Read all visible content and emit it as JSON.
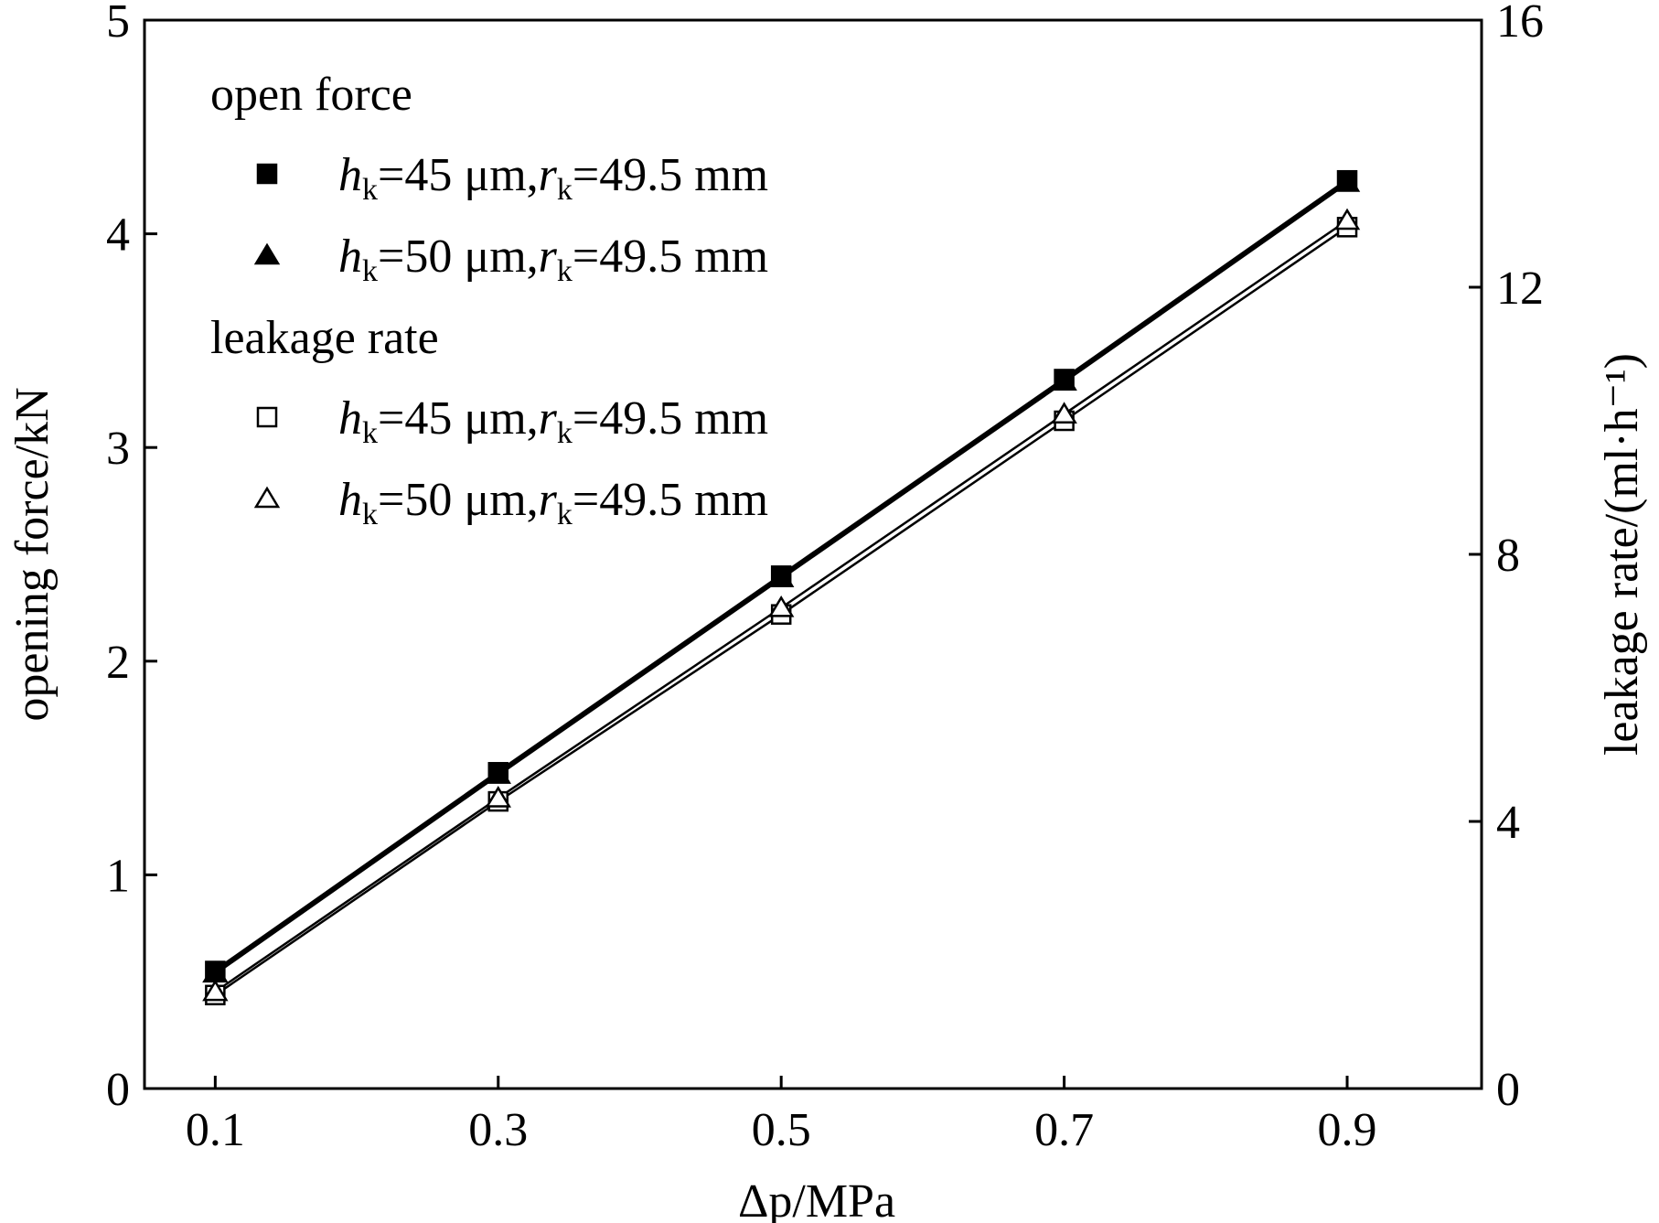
{
  "chart_data": {
    "type": "line",
    "title": "",
    "xlabel": "Δp/MPa",
    "ylabel_left": "opening force/kN",
    "ylabel_right": "leakage rate/(ml·h⁻¹)",
    "x": [
      0.1,
      0.3,
      0.5,
      0.7,
      0.9
    ],
    "xlim": [
      0.05,
      0.995
    ],
    "ylim_left": [
      0,
      5
    ],
    "ylim_right": [
      0,
      16
    ],
    "x_ticks": [
      "0.1",
      "0.3",
      "0.5",
      "0.7",
      "0.9"
    ],
    "y_ticks_left": [
      "0",
      "1",
      "2",
      "3",
      "4",
      "5"
    ],
    "y_ticks_right": [
      "0",
      "4",
      "8",
      "12",
      "16"
    ],
    "grid": false,
    "legend_placement": "top-left",
    "legend_groups": [
      {
        "heading": "open force",
        "entries": [
          {
            "marker": "filled-square",
            "h_k": "45 μm",
            "r_k": "49.5 mm"
          },
          {
            "marker": "filled-triangle",
            "h_k": "50 μm",
            "r_k": "49.5 mm"
          }
        ]
      },
      {
        "heading": "leakage rate",
        "entries": [
          {
            "marker": "open-square",
            "h_k": "45 μm",
            "r_k": "49.5 mm"
          },
          {
            "marker": "open-triangle",
            "h_k": "50 μm",
            "r_k": "49.5 mm"
          }
        ]
      }
    ],
    "series": [
      {
        "axis": "left",
        "marker": "filled-square",
        "values": [
          0.55,
          1.48,
          2.4,
          3.32,
          4.25
        ]
      },
      {
        "axis": "left",
        "marker": "filled-triangle",
        "values": [
          0.54,
          1.47,
          2.39,
          3.31,
          4.24
        ]
      },
      {
        "axis": "right",
        "marker": "open-square",
        "values": [
          1.4,
          4.3,
          7.1,
          10.0,
          12.9
        ]
      },
      {
        "axis": "right",
        "marker": "open-triangle",
        "values": [
          1.45,
          4.35,
          7.2,
          10.1,
          13.0
        ]
      }
    ],
    "colors": {
      "line": "#000000",
      "background": "#ffffff"
    }
  }
}
